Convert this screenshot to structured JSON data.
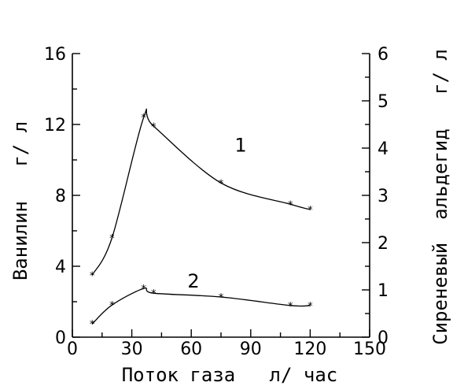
{
  "chart_data": {
    "type": "line",
    "xlabel": "Поток газа   л/ час",
    "ylabel_left": "Ванилин   г/ л",
    "ylabel_right": "Сиреневый  альдегид   г/ л",
    "xlim": [
      0,
      150
    ],
    "ylim_left": [
      0,
      16
    ],
    "ylim_right": [
      0,
      6
    ],
    "x_ticks": [
      "0",
      "30",
      "60",
      "90",
      "120",
      "150"
    ],
    "y_left_ticks": [
      "0",
      "4",
      "8",
      "12",
      "16"
    ],
    "y_right_ticks": [
      "0",
      "1",
      "2",
      "3",
      "4",
      "5",
      "6"
    ],
    "grid": false,
    "series": [
      {
        "name": "1",
        "axis": "left",
        "x": [
          10,
          20,
          36,
          41,
          75,
          110,
          120
        ],
        "y": [
          3.5,
          5.6,
          12.4,
          11.9,
          8.7,
          7.5,
          7.2
        ]
      },
      {
        "name": "2",
        "axis": "right",
        "x": [
          10,
          20,
          36,
          41,
          75,
          110,
          120
        ],
        "y": [
          0.28,
          0.68,
          1.03,
          0.93,
          0.85,
          0.67,
          0.67
        ]
      }
    ]
  }
}
